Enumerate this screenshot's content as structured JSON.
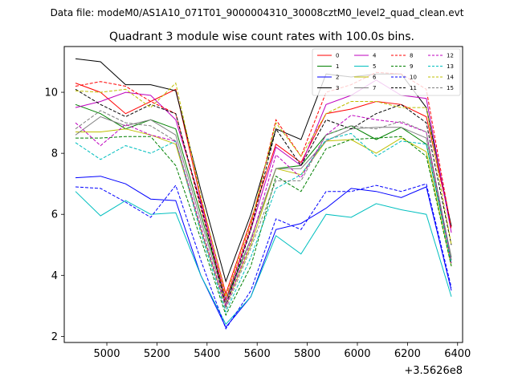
{
  "suptitle": "Data file: modeM0/AS1A10_071T01_9000004310_30008cztM0_level2_quad_clean.evt",
  "chart_data": {
    "type": "line",
    "title": "Quadrant 3 module wise count rates with 100.0s bins.",
    "xlabel": "",
    "ylabel": "",
    "offset_label": "+3.5626e8",
    "xlim": [
      4830,
      6420
    ],
    "ylim": [
      1.8,
      11.5
    ],
    "xticks": [
      5000,
      5200,
      5400,
      5600,
      5800,
      6000,
      6200,
      6400
    ],
    "yticks": [
      2,
      4,
      6,
      8,
      10
    ],
    "x": [
      4875,
      4975,
      5075,
      5175,
      5275,
      5375,
      5475,
      5575,
      5675,
      5775,
      5875,
      5975,
      6075,
      6175,
      6275,
      6375
    ],
    "legend_location": "upper right",
    "series": [
      {
        "name": "0",
        "color": "#ff0000",
        "dash": "solid",
        "values": [
          10.3,
          10.0,
          9.3,
          9.7,
          10.1,
          6.5,
          3.4,
          5.8,
          8.3,
          7.7,
          9.3,
          9.45,
          9.7,
          9.6,
          9.2,
          5.6
        ]
      },
      {
        "name": "1",
        "color": "#008000",
        "dash": "solid",
        "values": [
          9.6,
          9.3,
          8.8,
          9.1,
          8.8,
          6.0,
          3.2,
          5.2,
          7.5,
          7.6,
          8.6,
          8.9,
          8.45,
          8.85,
          8.3,
          4.5
        ]
      },
      {
        "name": "2",
        "color": "#0000ff",
        "dash": "solid",
        "values": [
          7.2,
          7.25,
          7.0,
          6.5,
          6.45,
          4.0,
          2.3,
          3.3,
          5.5,
          5.7,
          6.2,
          6.85,
          6.75,
          6.55,
          6.9,
          3.5
        ]
      },
      {
        "name": "3",
        "color": "#000000",
        "dash": "solid",
        "values": [
          11.1,
          11.0,
          10.25,
          10.25,
          10.05,
          6.8,
          3.8,
          6.0,
          8.8,
          8.45,
          10.6,
          10.5,
          10.6,
          10.6,
          9.5,
          5.6
        ]
      },
      {
        "name": "4",
        "color": "#bf00bf",
        "dash": "solid",
        "values": [
          9.5,
          9.7,
          10.0,
          9.9,
          9.1,
          6.4,
          3.2,
          5.5,
          8.2,
          7.6,
          9.6,
          9.9,
          10.4,
          9.9,
          9.8,
          5.4
        ]
      },
      {
        "name": "5",
        "color": "#00bfbf",
        "dash": "solid",
        "values": [
          6.75,
          5.95,
          6.45,
          6.0,
          6.05,
          4.0,
          2.4,
          3.3,
          5.3,
          4.7,
          6.0,
          5.9,
          6.35,
          6.15,
          6.0,
          3.3
        ]
      },
      {
        "name": "6",
        "color": "#bfbf00",
        "dash": "solid",
        "values": [
          8.7,
          8.7,
          8.8,
          8.6,
          8.3,
          5.5,
          3.0,
          5.0,
          7.5,
          7.3,
          8.4,
          8.45,
          8.0,
          8.5,
          8.05,
          4.3
        ]
      },
      {
        "name": "7",
        "color": "#808080",
        "dash": "solid",
        "values": [
          8.6,
          9.2,
          8.9,
          9.1,
          8.6,
          5.8,
          3.1,
          5.2,
          7.5,
          7.5,
          8.4,
          8.8,
          8.85,
          8.85,
          8.5,
          4.6
        ]
      },
      {
        "name": "8",
        "color": "#ff0000",
        "dash": "dashed",
        "values": [
          10.2,
          10.35,
          10.2,
          9.7,
          9.3,
          6.2,
          3.2,
          5.6,
          9.1,
          7.9,
          10.0,
          10.25,
          10.65,
          10.6,
          10.1,
          5.5
        ]
      },
      {
        "name": "9",
        "color": "#008000",
        "dash": "dashed",
        "values": [
          8.5,
          8.5,
          8.55,
          8.55,
          7.6,
          5.2,
          2.7,
          4.3,
          7.25,
          6.75,
          8.15,
          8.45,
          8.5,
          8.55,
          7.9,
          4.3
        ]
      },
      {
        "name": "10",
        "color": "#0000ff",
        "dash": "dashed",
        "values": [
          6.9,
          6.85,
          6.4,
          5.9,
          6.95,
          4.5,
          2.25,
          3.5,
          5.85,
          5.5,
          6.75,
          6.75,
          6.95,
          6.75,
          7.0,
          3.6
        ]
      },
      {
        "name": "11",
        "color": "#000000",
        "dash": "dashed",
        "values": [
          10.1,
          9.6,
          9.2,
          9.6,
          9.3,
          6.3,
          3.0,
          5.5,
          8.8,
          7.6,
          9.1,
          8.8,
          9.3,
          9.6,
          9.0,
          5.0
        ]
      },
      {
        "name": "12",
        "color": "#bf00bf",
        "dash": "dashed",
        "values": [
          9.0,
          8.25,
          8.95,
          8.6,
          8.4,
          5.6,
          3.0,
          5.1,
          7.95,
          7.2,
          8.6,
          9.25,
          9.1,
          9.0,
          8.7,
          4.4
        ]
      },
      {
        "name": "13",
        "color": "#00bfbf",
        "dash": "dashed",
        "values": [
          8.35,
          7.8,
          8.25,
          8.0,
          8.4,
          5.4,
          2.8,
          4.6,
          6.85,
          7.3,
          8.45,
          8.65,
          7.9,
          8.4,
          8.3,
          4.4
        ]
      },
      {
        "name": "14",
        "color": "#bfbf00",
        "dash": "dashed",
        "values": [
          10.05,
          10.0,
          10.1,
          9.5,
          10.3,
          6.6,
          3.3,
          5.7,
          9.0,
          7.9,
          9.3,
          9.7,
          9.7,
          9.5,
          9.5,
          5.0
        ]
      },
      {
        "name": "15",
        "color": "#808080",
        "dash": "dashed",
        "values": [
          8.8,
          9.4,
          9.0,
          8.9,
          8.4,
          5.5,
          2.9,
          4.9,
          7.1,
          7.1,
          8.6,
          8.9,
          8.8,
          9.05,
          8.7,
          4.5
        ]
      }
    ]
  }
}
